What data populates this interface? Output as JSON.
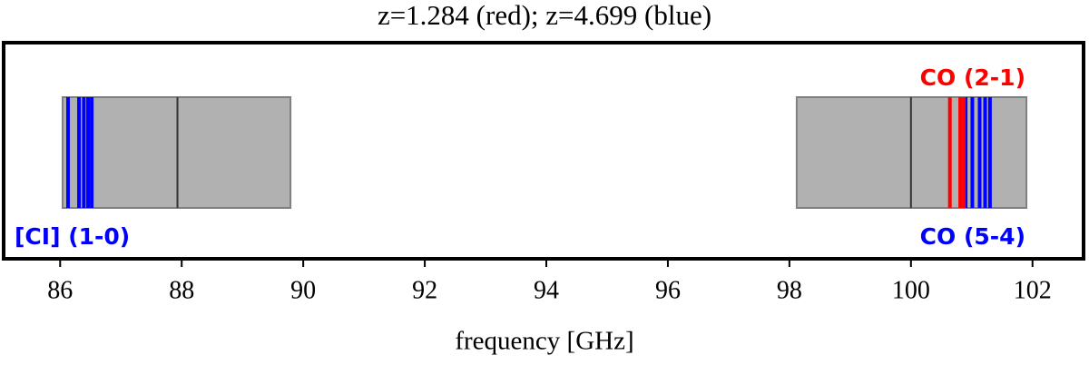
{
  "chart_data": {
    "type": "spectral-windows",
    "title": "z=1.284 (red); z=4.699 (blue)",
    "x_label": "frequency [GHz]",
    "xlim": [
      85.07,
      102.84
    ],
    "xticks": [
      86,
      88,
      90,
      92,
      94,
      96,
      98,
      100,
      102
    ],
    "windows": [
      {
        "start": 86.04,
        "end": 89.79,
        "center": 87.93,
        "color": "#a9a9a9"
      },
      {
        "start": 98.12,
        "end": 101.9,
        "center": 100.0,
        "color": "#a9a9a9"
      }
    ],
    "series": [
      {
        "color": "#0000ff",
        "values": [
          86.13,
          86.31,
          86.39,
          86.46,
          86.52,
          100.9,
          101.01,
          101.13,
          101.22,
          101.3
        ]
      },
      {
        "color": "#ff0000",
        "values": [
          100.64,
          100.81,
          100.87
        ]
      }
    ],
    "annotations": [
      {
        "text": "CO (2-1)",
        "color": "#ff0000"
      },
      {
        "text": "[CI] (1-0)",
        "color": "#0000ff"
      },
      {
        "text": "CO (5-4)",
        "color": "#0000ff"
      }
    ]
  }
}
